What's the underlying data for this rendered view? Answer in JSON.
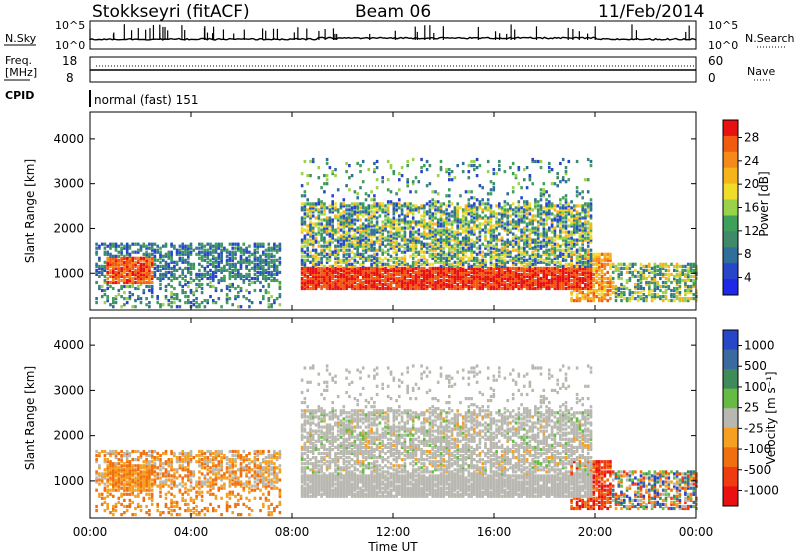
{
  "header": {
    "title": "Stokkseyri (fitACF)",
    "beam": "Beam 06",
    "date": "11/Feb/2014"
  },
  "nsky_panel": {
    "left_label": "N.Sky",
    "right_label": "N.Search",
    "left_ticks": [
      "10^5",
      "10^0"
    ],
    "right_ticks": [
      "10^5",
      "10^0"
    ]
  },
  "freq_panel": {
    "left_label_line1": "Freq.",
    "left_label_line2": "[MHz]",
    "left_ticks": [
      "18",
      "8"
    ],
    "right_ticks": [
      "60",
      "0"
    ],
    "right_label": "Nave"
  },
  "cpid_panel": {
    "left_label": "CPID",
    "program": "normal (fast) 151"
  },
  "chart_data": [
    {
      "type": "heatmap",
      "panel": "power",
      "ylabel": "Slant Range [km]",
      "yticks": [
        "4000",
        "3000",
        "2000",
        "1000"
      ],
      "ylim": [
        180,
        4600
      ],
      "xlim_hours": [
        0,
        24
      ],
      "colorbar": {
        "label": "Power [dB]",
        "ticks": [
          "28",
          "24",
          "20",
          "16",
          "12",
          "8",
          "4"
        ],
        "colors": [
          "#e81010",
          "#f25a10",
          "#f58a1a",
          "#f5b51a",
          "#f2dc2a",
          "#9ad24a",
          "#3fa05a",
          "#3e8a6a",
          "#2f6f9a",
          "#2846c8",
          "#1e28e6"
        ]
      },
      "patterns": [
        {
          "hour": [
            0.7,
            2.4
          ],
          "range_km": [
            800,
            1350
          ],
          "level": "strong"
        },
        {
          "hour": [
            0.3,
            7.4
          ],
          "range_km": [
            900,
            1700
          ],
          "level": "moderate"
        },
        {
          "hour": [
            8.3,
            19.7
          ],
          "range_km": [
            650,
            1150
          ],
          "level": "strong"
        },
        {
          "hour": [
            8.3,
            19.7
          ],
          "range_km": [
            1200,
            2500
          ],
          "level": "moderate"
        },
        {
          "hour": [
            20.5,
            24
          ],
          "range_km": [
            400,
            1200
          ],
          "level": "moderate"
        }
      ]
    },
    {
      "type": "heatmap",
      "panel": "velocity",
      "ylabel": "Slant Range [km]",
      "yticks": [
        "4000",
        "3000",
        "2000",
        "1000"
      ],
      "ylim": [
        180,
        4600
      ],
      "xlim_hours": [
        0,
        24
      ],
      "colorbar": {
        "label": "Velocity [m s⁻¹]",
        "ticks": [
          "1000",
          "500",
          "100",
          "25",
          "-25",
          "-100",
          "-500",
          "-1000"
        ],
        "colors": [
          "#2846c8",
          "#3a6aa0",
          "#3f8a5a",
          "#66bb44",
          "#b8b8b0",
          "#f5a020",
          "#f07010",
          "#f03a10",
          "#e81010"
        ]
      },
      "patterns": [
        {
          "hour": [
            0.3,
            7.4
          ],
          "range_km": [
            900,
            1700
          ],
          "level": "approaching"
        },
        {
          "hour": [
            8.3,
            19.7
          ],
          "range_km": [
            500,
            2500
          ],
          "level": "ground-scatter"
        },
        {
          "hour": [
            19.0,
            20.5
          ],
          "range_km": [
            500,
            1500
          ],
          "level": "receding"
        },
        {
          "hour": [
            20.5,
            24
          ],
          "range_km": [
            500,
            1500
          ],
          "level": "mixed"
        }
      ]
    }
  ],
  "xaxis": {
    "ticks": [
      "00:00",
      "04:00",
      "08:00",
      "12:00",
      "16:00",
      "20:00",
      "00:00"
    ],
    "label": "Time UT"
  }
}
